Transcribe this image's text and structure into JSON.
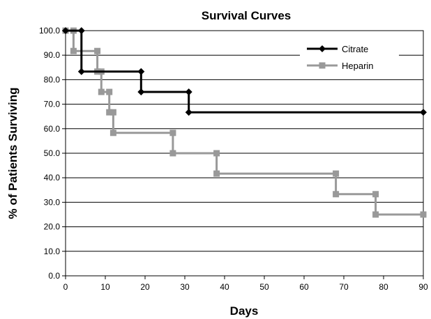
{
  "chart_data": {
    "type": "line",
    "title": "Survival Curves",
    "xlabel": "Days",
    "ylabel": "% of Patients Surviving",
    "xlim": [
      0,
      90
    ],
    "ylim": [
      0,
      100
    ],
    "x_ticks": [
      "0",
      "10",
      "20",
      "30",
      "40",
      "50",
      "60",
      "70",
      "80",
      "90"
    ],
    "y_ticks": [
      "0.0",
      "10.0",
      "20.0",
      "30.0",
      "40.0",
      "50.0",
      "60.0",
      "70.0",
      "80.0",
      "90.0",
      "100.0"
    ],
    "grid": "horizontal",
    "legend_position": "top-right",
    "step": true,
    "series": [
      {
        "name": "Citrate",
        "color": "#000000",
        "marker": "diamond",
        "x": [
          0,
          4,
          4,
          19,
          19,
          31,
          31,
          90
        ],
        "y": [
          100.0,
          100.0,
          83.3,
          83.3,
          75.0,
          75.0,
          66.7,
          66.7
        ]
      },
      {
        "name": "Heparin",
        "color": "#999999",
        "marker": "square",
        "x": [
          0,
          2,
          2,
          8,
          8,
          9,
          9,
          11,
          11,
          12,
          12,
          27,
          27,
          38,
          38,
          68,
          68,
          78,
          78,
          90
        ],
        "y": [
          100.0,
          100.0,
          91.7,
          91.7,
          83.3,
          83.3,
          75.0,
          75.0,
          66.7,
          66.7,
          58.3,
          58.3,
          50.0,
          50.0,
          41.7,
          41.7,
          33.3,
          33.3,
          25.0,
          25.0
        ]
      }
    ]
  }
}
